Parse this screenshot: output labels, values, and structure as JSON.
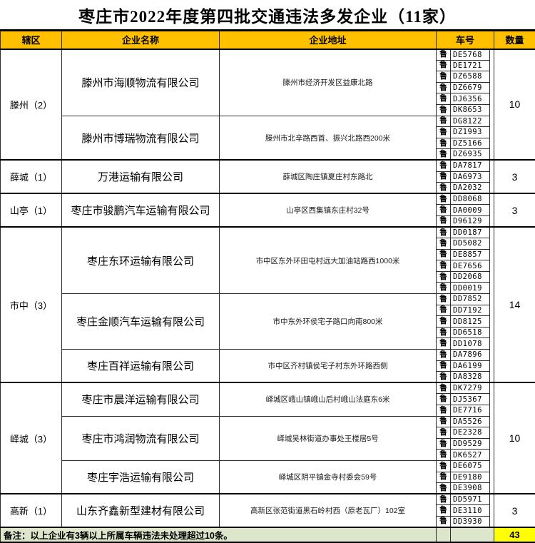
{
  "title": "枣庄市2022年度第四批交通违法多发企业（11家）",
  "columns": {
    "district": "辖区",
    "company": "企业名称",
    "address": "企业地址",
    "plate": "车号",
    "count": "数量"
  },
  "province_prefix": "鲁",
  "footer": {
    "note": "备注：以上企业有3辆以上所属车辆违法未处理超过10条。",
    "total": "43"
  },
  "colors": {
    "header_bg": "#FFC000",
    "footer_bg": "#DDE6CA",
    "total_bg": "#FFFF00",
    "border": "#2E2E2E"
  },
  "districts": [
    {
      "name": "滕州（2）",
      "count": "10",
      "companies": [
        {
          "name": "滕州市海顺物流有限公司",
          "address": "滕州市经济开发区益康北路",
          "plates": [
            "DE5768",
            "DE1721",
            "DZ6588",
            "DZ6679",
            "DJ6356",
            "DK8653"
          ]
        },
        {
          "name": "滕州市博瑞物流有限公司",
          "address": "滕州市北辛路西首、振兴北路西200米",
          "plates": [
            "DG8122",
            "DZ1993",
            "DZ5166",
            "DZ6935"
          ]
        }
      ]
    },
    {
      "name": "薛城（1）",
      "count": "3",
      "companies": [
        {
          "name": "万港运输有限公司",
          "address": "薛城区陶庄镇夏庄村东路北",
          "plates": [
            "DA7817",
            "DA6973",
            "DA2032"
          ]
        }
      ]
    },
    {
      "name": "山亭（1）",
      "count": "3",
      "companies": [
        {
          "name": "枣庄市骏鹏汽车运输有限公司",
          "address": "山亭区西集镇东庄村32号",
          "plates": [
            "DD8068",
            "DA0009",
            "D96129"
          ]
        }
      ]
    },
    {
      "name": "市中（3）",
      "count": "14",
      "companies": [
        {
          "name": "枣庄东环运输有限公司",
          "address": "市中区东外环田屯村远大加油站路西1000米",
          "plates": [
            "DD0187",
            "DD5082",
            "DE8857",
            "DE7656",
            "DD2068",
            "DD0019"
          ]
        },
        {
          "name": "枣庄金顺汽车运输有限公司",
          "address": "市中东外环侯宅子路口向南800米",
          "plates": [
            "DD7852",
            "DD7192",
            "DD8125",
            "DD6518",
            "DD1078"
          ]
        },
        {
          "name": "枣庄百祥运输有限公司",
          "address": "市中区齐村镇侯宅子村东外环路西侧",
          "plates": [
            "DA7896",
            "DA6199",
            "DA8328"
          ]
        }
      ]
    },
    {
      "name": "峄城（3）",
      "count": "10",
      "companies": [
        {
          "name": "枣庄市晨洋运输有限公司",
          "address": "峄城区峨山镇峨山后村峨山法庭东6米",
          "plates": [
            "DK7279",
            "DJ5367",
            "DE7716"
          ]
        },
        {
          "name": "枣庄市鸿润物流有限公司",
          "address": "峄城吴林街道办事处王楼居5号",
          "plates": [
            "DA5526",
            "DE2328",
            "DD9529",
            "DK6527"
          ]
        },
        {
          "name": "枣庄宇浩运输有限公司",
          "address": "峄城区阴平镇金寺村委会59号",
          "plates": [
            "DE6075",
            "DE9180",
            "DE3908"
          ]
        }
      ]
    },
    {
      "name": "高新（1）",
      "count": "3",
      "companies": [
        {
          "name": "山东齐鑫新型建材有限公司",
          "address": "高新区张范街道黑石岭村西（原老瓦厂）102室",
          "plates": [
            "DD5971",
            "DE3110",
            "DD3930"
          ]
        }
      ]
    }
  ]
}
